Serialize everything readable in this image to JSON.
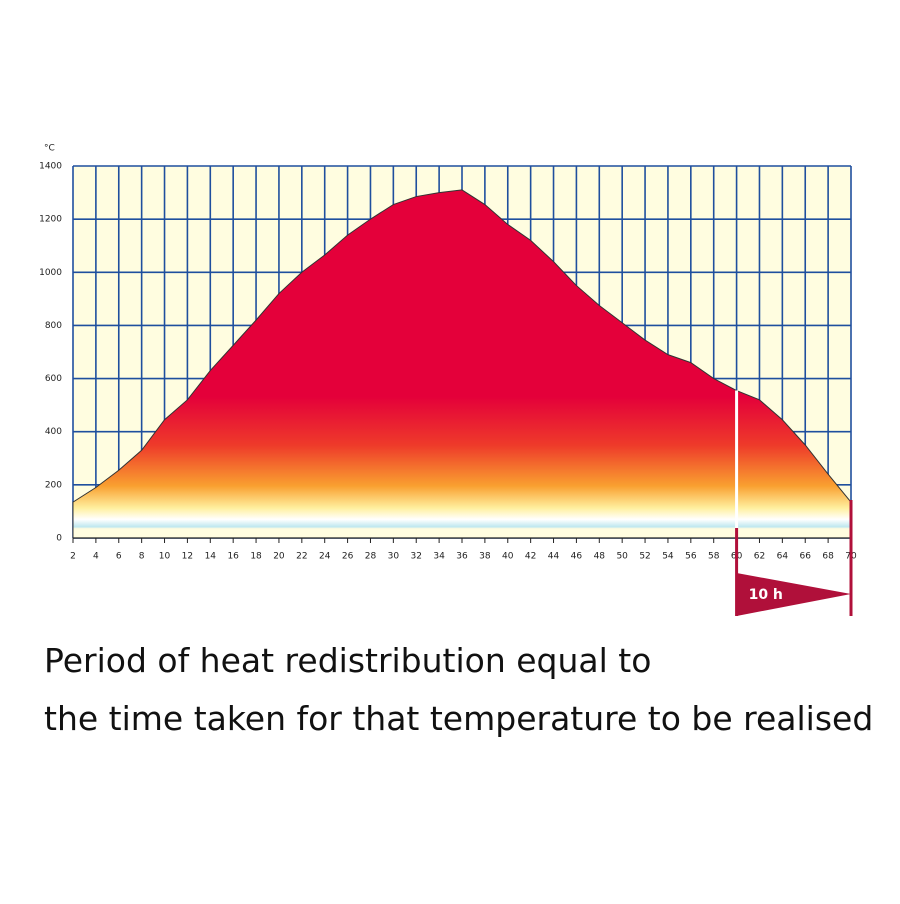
{
  "chart_data": {
    "type": "area",
    "y_label": "°C",
    "x": [
      2,
      4,
      6,
      8,
      10,
      12,
      14,
      16,
      18,
      20,
      22,
      24,
      26,
      28,
      30,
      32,
      34,
      36,
      38,
      40,
      42,
      44,
      46,
      48,
      50,
      52,
      54,
      56,
      58,
      60,
      62,
      64,
      66,
      68,
      70
    ],
    "values": [
      135,
      190,
      255,
      330,
      445,
      520,
      630,
      725,
      820,
      920,
      1000,
      1065,
      1140,
      1200,
      1255,
      1285,
      1300,
      1310,
      1255,
      1180,
      1120,
      1040,
      950,
      875,
      810,
      745,
      690,
      660,
      600,
      555,
      520,
      445,
      350,
      240,
      135
    ],
    "color": "#e4003a",
    "xlim": [
      2,
      70
    ],
    "ylim": [
      0,
      1400
    ],
    "xticks": [
      2,
      4,
      6,
      8,
      10,
      12,
      14,
      16,
      18,
      20,
      22,
      24,
      26,
      28,
      30,
      32,
      34,
      36,
      38,
      40,
      42,
      44,
      46,
      48,
      50,
      52,
      54,
      56,
      58,
      60,
      62,
      64,
      66,
      68,
      70
    ],
    "yticks": [
      0,
      200,
      400,
      600,
      800,
      1000,
      1200,
      1400
    ],
    "grid": true,
    "annotation": "10 h",
    "caption": [
      "Period of heat redistribution equal to",
      "the time taken for that temperature to be realised"
    ]
  }
}
